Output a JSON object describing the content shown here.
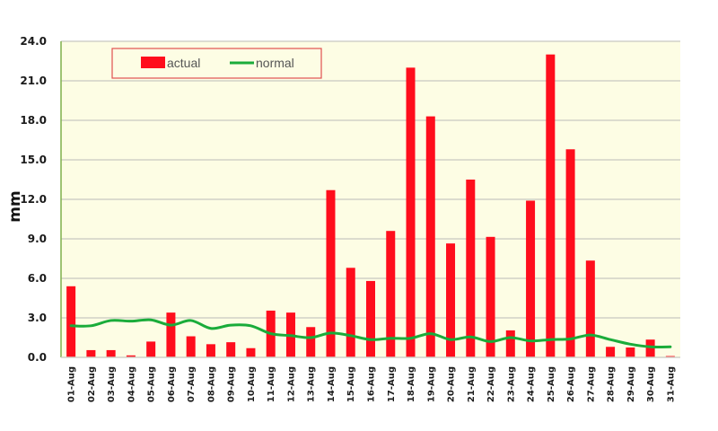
{
  "chart_data": {
    "type": "bar",
    "title": "",
    "xlabel": "",
    "ylabel": "mm",
    "ylim": [
      0,
      24
    ],
    "yticks": [
      "0.0",
      "3.0",
      "6.0",
      "9.0",
      "12.0",
      "15.0",
      "18.0",
      "21.0",
      "24.0"
    ],
    "grid": true,
    "legend_position": "top-left (inside plot)",
    "categories": [
      "01-Aug",
      "02-Aug",
      "03-Aug",
      "04-Aug",
      "05-Aug",
      "06-Aug",
      "07-Aug",
      "08-Aug",
      "09-Aug",
      "10-Aug",
      "11-Aug",
      "12-Aug",
      "13-Aug",
      "14-Aug",
      "15-Aug",
      "16-Aug",
      "17-Aug",
      "18-Aug",
      "19-Aug",
      "20-Aug",
      "21-Aug",
      "22-Aug",
      "23-Aug",
      "24-Aug",
      "25-Aug",
      "26-Aug",
      "27-Aug",
      "28-Aug",
      "29-Aug",
      "30-Aug",
      "31-Aug"
    ],
    "series": [
      {
        "name": "actual",
        "type": "bar",
        "color": "#ff0d1c",
        "values": [
          5.4,
          0.55,
          0.55,
          0.15,
          1.2,
          3.4,
          1.6,
          1.0,
          1.15,
          0.7,
          3.55,
          3.4,
          2.3,
          12.7,
          6.8,
          5.8,
          9.6,
          22.0,
          18.3,
          8.65,
          13.5,
          9.15,
          2.05,
          11.9,
          23.0,
          15.8,
          7.35,
          0.8,
          0.75,
          1.35,
          0.1
        ]
      },
      {
        "name": "normal",
        "type": "line",
        "color": "#1aac3a",
        "values": [
          2.4,
          2.4,
          2.8,
          2.75,
          2.85,
          2.45,
          2.8,
          2.2,
          2.45,
          2.4,
          1.8,
          1.65,
          1.5,
          1.85,
          1.65,
          1.35,
          1.45,
          1.45,
          1.8,
          1.35,
          1.55,
          1.2,
          1.5,
          1.25,
          1.35,
          1.4,
          1.7,
          1.35,
          1.0,
          0.8,
          0.8
        ]
      }
    ]
  },
  "legend": {
    "actual_label": "actual",
    "normal_label": "normal"
  },
  "colors": {
    "plot_background": "#fdfde4",
    "gridline": "#c8c8c0",
    "axis_line": "#7fb04a",
    "legend_border": "#e05050"
  }
}
